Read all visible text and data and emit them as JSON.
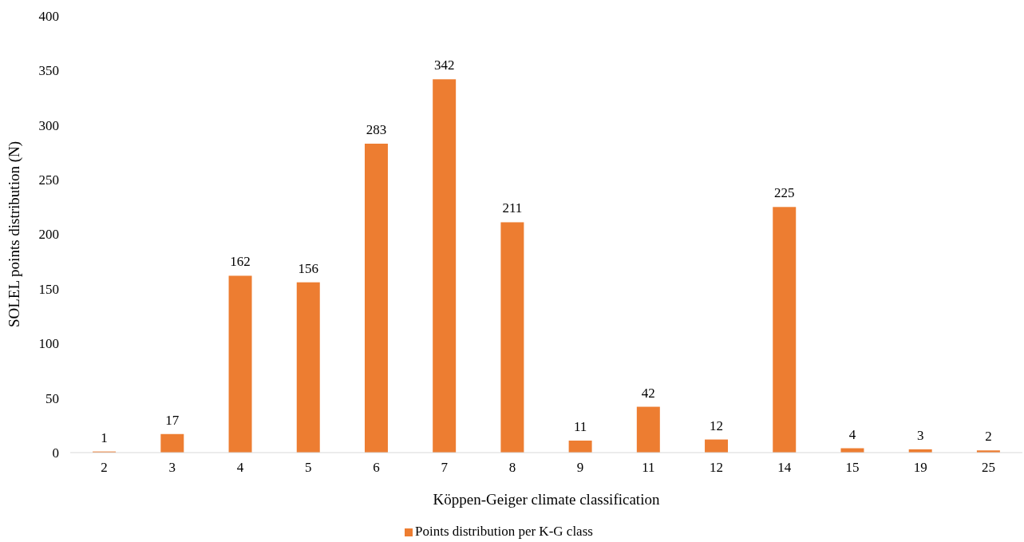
{
  "chart_data": {
    "type": "bar",
    "xlabel": "Köppen-Geiger climate classification",
    "ylabel": "SOLEL points distribution (N)",
    "categories": [
      "2",
      "3",
      "4",
      "5",
      "6",
      "7",
      "8",
      "9",
      "11",
      "12",
      "14",
      "15",
      "19",
      "25"
    ],
    "series": [
      {
        "name": "Points distribution per K-G class",
        "color": "#ed7d31",
        "values": [
          1,
          17,
          162,
          156,
          283,
          342,
          211,
          11,
          42,
          12,
          225,
          4,
          3,
          2
        ]
      }
    ],
    "ylim": [
      0,
      400
    ],
    "yticks": [
      0,
      50,
      100,
      150,
      200,
      250,
      300,
      350,
      400
    ],
    "data_labels": true,
    "legend": "bottom",
    "grid": false
  }
}
